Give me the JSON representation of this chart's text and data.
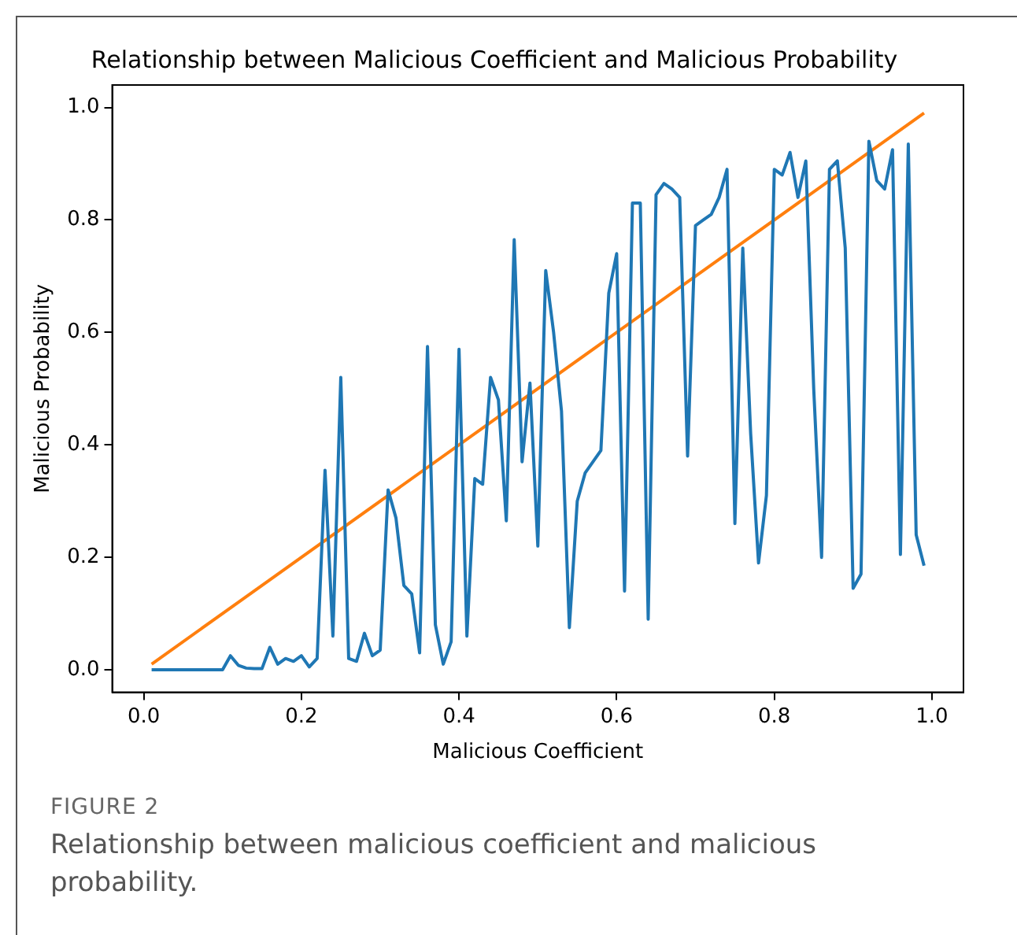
{
  "chart_data": {
    "type": "line",
    "title": "Relationship between Malicious Coefficient and Malicious Probability",
    "xlabel": "Malicious Coefficient",
    "ylabel": "Malicious Probability",
    "xlim": [
      -0.04,
      1.04
    ],
    "ylim": [
      -0.04,
      1.04
    ],
    "xticks": [
      {
        "value": 0,
        "label": "0.0"
      },
      {
        "value": 0.2,
        "label": "0.2"
      },
      {
        "value": 0.4,
        "label": "0.4"
      },
      {
        "value": 0.6,
        "label": "0.6"
      },
      {
        "value": 0.8,
        "label": "0.8"
      },
      {
        "value": 1,
        "label": "1.0"
      }
    ],
    "yticks": [
      {
        "value": 0,
        "label": "0.0"
      },
      {
        "value": 0.2,
        "label": "0.2"
      },
      {
        "value": 0.4,
        "label": "0.4"
      },
      {
        "value": 0.6,
        "label": "0.6"
      },
      {
        "value": 0.8,
        "label": "0.8"
      },
      {
        "value": 1,
        "label": "1.0"
      }
    ],
    "grid": false,
    "legend": false,
    "series": [
      {
        "color": "#1f77b4",
        "x": [
          0.01,
          0.02,
          0.03,
          0.04,
          0.05,
          0.06,
          0.07,
          0.08,
          0.09,
          0.1,
          0.11,
          0.12,
          0.13,
          0.14,
          0.15,
          0.16,
          0.17,
          0.18,
          0.19,
          0.2,
          0.21,
          0.22,
          0.23,
          0.24,
          0.25,
          0.26,
          0.27,
          0.28,
          0.29,
          0.3,
          0.31,
          0.32,
          0.33,
          0.34,
          0.35,
          0.36,
          0.37,
          0.38,
          0.39,
          0.4,
          0.41,
          0.42,
          0.43,
          0.44,
          0.45,
          0.46,
          0.47,
          0.48,
          0.49,
          0.5,
          0.51,
          0.52,
          0.53,
          0.54,
          0.55,
          0.56,
          0.57,
          0.58,
          0.59,
          0.6,
          0.61,
          0.62,
          0.63,
          0.64,
          0.65,
          0.66,
          0.67,
          0.68,
          0.69,
          0.7,
          0.71,
          0.72,
          0.73,
          0.74,
          0.75,
          0.76,
          0.77,
          0.78,
          0.79,
          0.8,
          0.81,
          0.82,
          0.83,
          0.84,
          0.85,
          0.86,
          0.87,
          0.88,
          0.89,
          0.9,
          0.91,
          0.92,
          0.93,
          0.94,
          0.95,
          0.96,
          0.97,
          0.98,
          0.99
        ],
        "values": [
          0,
          0,
          0,
          0,
          0,
          0,
          0,
          0,
          0,
          0,
          0.025,
          0.008,
          0.003,
          0.002,
          0.002,
          0.04,
          0.01,
          0.02,
          0.015,
          0.025,
          0.005,
          0.02,
          0.355,
          0.06,
          0.52,
          0.02,
          0.015,
          0.065,
          0.025,
          0.035,
          0.32,
          0.27,
          0.15,
          0.135,
          0.03,
          0.575,
          0.08,
          0.01,
          0.05,
          0.57,
          0.06,
          0.34,
          0.33,
          0.52,
          0.48,
          0.265,
          0.765,
          0.37,
          0.51,
          0.22,
          0.71,
          0.6,
          0.46,
          0.075,
          0.3,
          0.35,
          0.37,
          0.39,
          0.67,
          0.74,
          0.14,
          0.83,
          0.83,
          0.09,
          0.845,
          0.865,
          0.855,
          0.84,
          0.38,
          0.79,
          0.8,
          0.81,
          0.84,
          0.89,
          0.26,
          0.75,
          0.42,
          0.19,
          0.31,
          0.89,
          0.88,
          0.92,
          0.84,
          0.905,
          0.5,
          0.2,
          0.89,
          0.905,
          0.75,
          0.145,
          0.17,
          0.94,
          0.87,
          0.855,
          0.925,
          0.205,
          0.935,
          0.24,
          0.185
        ]
      },
      {
        "color": "#ff7f0e",
        "x": [
          0.01,
          0.99
        ],
        "values": [
          0.01,
          0.99
        ]
      }
    ],
    "annotations": [
      "FIGURE 2",
      "Relationship between malicious coefficient and malicious probability."
    ]
  }
}
